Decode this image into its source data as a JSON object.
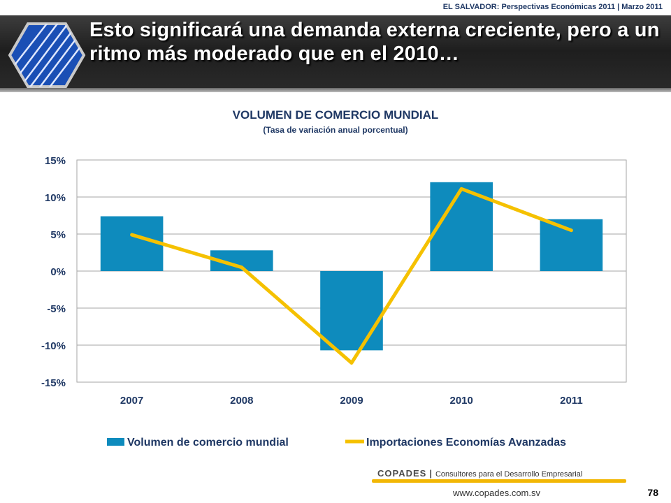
{
  "header": {
    "top_caption": "EL SALVADOR: Perspectivas Económicas 2011 | Marzo 2011",
    "title": "Esto significará una demanda externa creciente, pero a un ritmo más moderado que en el 2010…"
  },
  "chart_data": {
    "type": "bar",
    "title": "VOLUMEN DE COMERCIO MUNDIAL",
    "subtitle": "(Tasa de variación anual porcentual)",
    "categories": [
      "2007",
      "2008",
      "2009",
      "2010",
      "2011"
    ],
    "ylim": [
      -15,
      15
    ],
    "yticks": [
      15,
      10,
      5,
      0,
      -5,
      -10,
      -15
    ],
    "ytick_labels": [
      "15%",
      "10%",
      "5%",
      "0%",
      "-5%",
      "-10%",
      "-15%"
    ],
    "grid": true,
    "legend_position": "bottom",
    "series": [
      {
        "name": "Volumen de comercio mundial",
        "type": "bar",
        "color": "#0e8bbd",
        "values": [
          7.4,
          2.8,
          -10.7,
          12.0,
          7.0
        ]
      },
      {
        "name": "Importaciones Economías Avanzadas",
        "type": "line",
        "color": "#f5c100",
        "values": [
          4.9,
          0.5,
          -12.4,
          11.1,
          5.5
        ]
      }
    ]
  },
  "footer": {
    "brand": "COPADES",
    "separator": "|",
    "tagline": "Consultores para el Desarrollo Empresarial",
    "url": "www.copades.com.sv",
    "page_number": "78"
  },
  "colors": {
    "accent_yellow": "#f2b705",
    "title_blue": "#1f3864"
  }
}
